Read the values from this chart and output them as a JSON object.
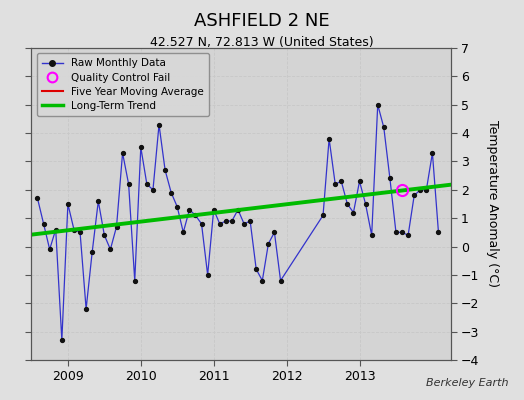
{
  "title": "ASHFIELD 2 NE",
  "subtitle": "42.527 N, 72.813 W (United States)",
  "ylabel": "Temperature Anomaly (°C)",
  "credit": "Berkeley Earth",
  "ylim": [
    -4,
    7
  ],
  "yticks": [
    -4,
    -3,
    -2,
    -1,
    0,
    1,
    2,
    3,
    4,
    5,
    6,
    7
  ],
  "xlim": [
    2008.5,
    2014.25
  ],
  "xticks": [
    2009,
    2010,
    2011,
    2012,
    2013
  ],
  "bg_color": "#e0e0e0",
  "plot_bg_color": "#d4d4d4",
  "grid_color": "#b8b8b8",
  "raw_x": [
    2008.583,
    2008.667,
    2008.75,
    2008.833,
    2008.917,
    2009.0,
    2009.083,
    2009.167,
    2009.25,
    2009.333,
    2009.417,
    2009.5,
    2009.583,
    2009.667,
    2009.75,
    2009.833,
    2009.917,
    2010.0,
    2010.083,
    2010.167,
    2010.25,
    2010.333,
    2010.417,
    2010.5,
    2010.583,
    2010.667,
    2010.75,
    2010.833,
    2010.917,
    2011.0,
    2011.083,
    2011.167,
    2011.25,
    2011.333,
    2011.417,
    2011.5,
    2011.583,
    2011.667,
    2011.75,
    2011.833,
    2011.917,
    2012.5,
    2012.583,
    2012.667,
    2012.75,
    2012.833,
    2012.917,
    2013.0,
    2013.083,
    2013.167,
    2013.25,
    2013.333,
    2013.417,
    2013.5,
    2013.583,
    2013.667,
    2013.75,
    2013.833,
    2013.917,
    2014.0,
    2014.083
  ],
  "raw_y": [
    1.7,
    0.8,
    -0.1,
    0.6,
    -3.3,
    1.5,
    0.6,
    0.5,
    -2.2,
    -0.2,
    1.6,
    0.4,
    -0.1,
    0.7,
    3.3,
    2.2,
    -1.2,
    3.5,
    2.2,
    2.0,
    4.3,
    2.7,
    1.9,
    1.4,
    0.5,
    1.3,
    1.1,
    0.8,
    -1.0,
    1.3,
    0.8,
    0.9,
    0.9,
    1.3,
    0.8,
    0.9,
    -0.8,
    -1.2,
    0.1,
    0.5,
    -1.2,
    1.1,
    3.8,
    2.2,
    2.3,
    1.5,
    1.2,
    2.3,
    1.5,
    0.4,
    5.0,
    4.2,
    2.4,
    0.5,
    0.5,
    0.4,
    1.8,
    2.0,
    2.0,
    3.3,
    0.5
  ],
  "qc_x": [
    2013.583
  ],
  "qc_y": [
    2.0
  ],
  "trend_x": [
    2008.5,
    2014.25
  ],
  "trend_y": [
    0.42,
    2.18
  ],
  "raw_line_color": "#3333cc",
  "raw_marker_color": "#111111",
  "qc_color": "#ff00ff",
  "trend_color": "#00bb00",
  "moving_avg_color": "#dd0000",
  "legend_labels": [
    "Raw Monthly Data",
    "Quality Control Fail",
    "Five Year Moving Average",
    "Long-Term Trend"
  ]
}
